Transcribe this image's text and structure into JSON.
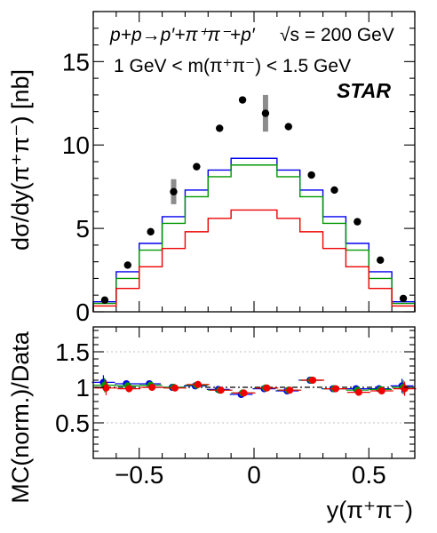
{
  "chart_data": [
    {
      "type": "line",
      "panel": "top",
      "ylabel": "dσ/dy(π⁺π⁻) [nb]",
      "ylim": [
        0,
        18
      ],
      "xlim": [
        -0.7,
        0.7
      ],
      "yticks": [
        "0",
        "5",
        "10",
        "15"
      ],
      "annotations": {
        "process": "p+p→p′+π⁺π⁻+p′",
        "energy": "√s = 200 GeV",
        "mass_cut": "1 GeV < m(π⁺π⁻) < 1.5 GeV",
        "experiment": "STAR"
      },
      "bin_edges": [
        -0.7,
        -0.6,
        -0.5,
        -0.4,
        -0.3,
        -0.2,
        -0.1,
        0.0,
        0.1,
        0.2,
        0.3,
        0.4,
        0.5,
        0.6,
        0.7
      ],
      "series": [
        {
          "kind": "data",
          "color": "#000000",
          "x": [
            -0.65,
            -0.55,
            -0.45,
            -0.35,
            -0.25,
            -0.15,
            -0.05,
            0.05,
            0.15,
            0.25,
            0.35,
            0.45,
            0.55,
            0.65
          ],
          "values": [
            0.7,
            2.8,
            4.8,
            7.2,
            8.7,
            11.0,
            12.7,
            11.9,
            11.1,
            8.2,
            7.3,
            5.4,
            3.1,
            0.8
          ],
          "syst_bars": [
            null,
            null,
            null,
            0.75,
            null,
            null,
            null,
            1.1,
            null,
            null,
            null,
            null,
            null,
            null
          ]
        },
        {
          "kind": "mc",
          "color": "#0000ee",
          "values": [
            0.6,
            2.4,
            4.1,
            5.7,
            7.3,
            8.5,
            9.2,
            9.2,
            8.5,
            7.3,
            5.7,
            4.1,
            2.4,
            0.6
          ]
        },
        {
          "kind": "mc",
          "color": "#009900",
          "values": [
            0.5,
            2.0,
            3.7,
            5.3,
            6.9,
            8.1,
            8.8,
            8.8,
            8.1,
            6.9,
            5.3,
            3.7,
            2.0,
            0.5
          ]
        },
        {
          "kind": "mc",
          "color": "#ee0000",
          "values": [
            0.35,
            1.4,
            2.7,
            3.8,
            4.8,
            5.6,
            6.1,
            6.1,
            5.6,
            4.8,
            3.8,
            2.7,
            1.4,
            0.35
          ]
        }
      ]
    },
    {
      "type": "scatter",
      "panel": "bottom",
      "ylabel": "MC(norm.)/Data",
      "xlabel": "y(π⁺π⁻)",
      "ylim": [
        0,
        1.85
      ],
      "xlim": [
        -0.7,
        0.7
      ],
      "yticks": [
        "0.5",
        "1",
        "1.5"
      ],
      "xticks": [
        "−0.5",
        "0",
        "0.5"
      ],
      "reference_line": 1.0,
      "x": [
        -0.65,
        -0.55,
        -0.45,
        -0.35,
        -0.25,
        -0.15,
        -0.05,
        0.05,
        0.15,
        0.25,
        0.35,
        0.45,
        0.55,
        0.65
      ],
      "series": [
        {
          "color": "#0000ee",
          "values": [
            1.07,
            1.05,
            1.05,
            1.0,
            1.02,
            0.97,
            0.9,
            0.98,
            0.95,
            1.1,
            0.98,
            0.98,
            0.98,
            1.02
          ],
          "errors": [
            0.1,
            0.05,
            0.04,
            0.03,
            0.03,
            0.03,
            0.03,
            0.03,
            0.03,
            0.03,
            0.03,
            0.04,
            0.05,
            0.1
          ]
        },
        {
          "color": "#009900",
          "values": [
            1.03,
            1.02,
            1.03,
            1.0,
            1.03,
            0.96,
            0.92,
            0.99,
            0.96,
            1.1,
            0.98,
            0.96,
            0.97,
            1.0
          ],
          "errors": [
            0.1,
            0.05,
            0.04,
            0.03,
            0.03,
            0.03,
            0.03,
            0.03,
            0.03,
            0.03,
            0.03,
            0.04,
            0.05,
            0.1
          ]
        },
        {
          "color": "#ee0000",
          "values": [
            0.99,
            0.98,
            1.0,
            0.99,
            1.04,
            0.96,
            0.92,
            0.99,
            0.96,
            1.1,
            0.98,
            0.93,
            0.95,
            0.98
          ],
          "errors": [
            0.1,
            0.05,
            0.04,
            0.03,
            0.03,
            0.03,
            0.03,
            0.03,
            0.03,
            0.03,
            0.03,
            0.04,
            0.05,
            0.1
          ]
        }
      ]
    }
  ]
}
